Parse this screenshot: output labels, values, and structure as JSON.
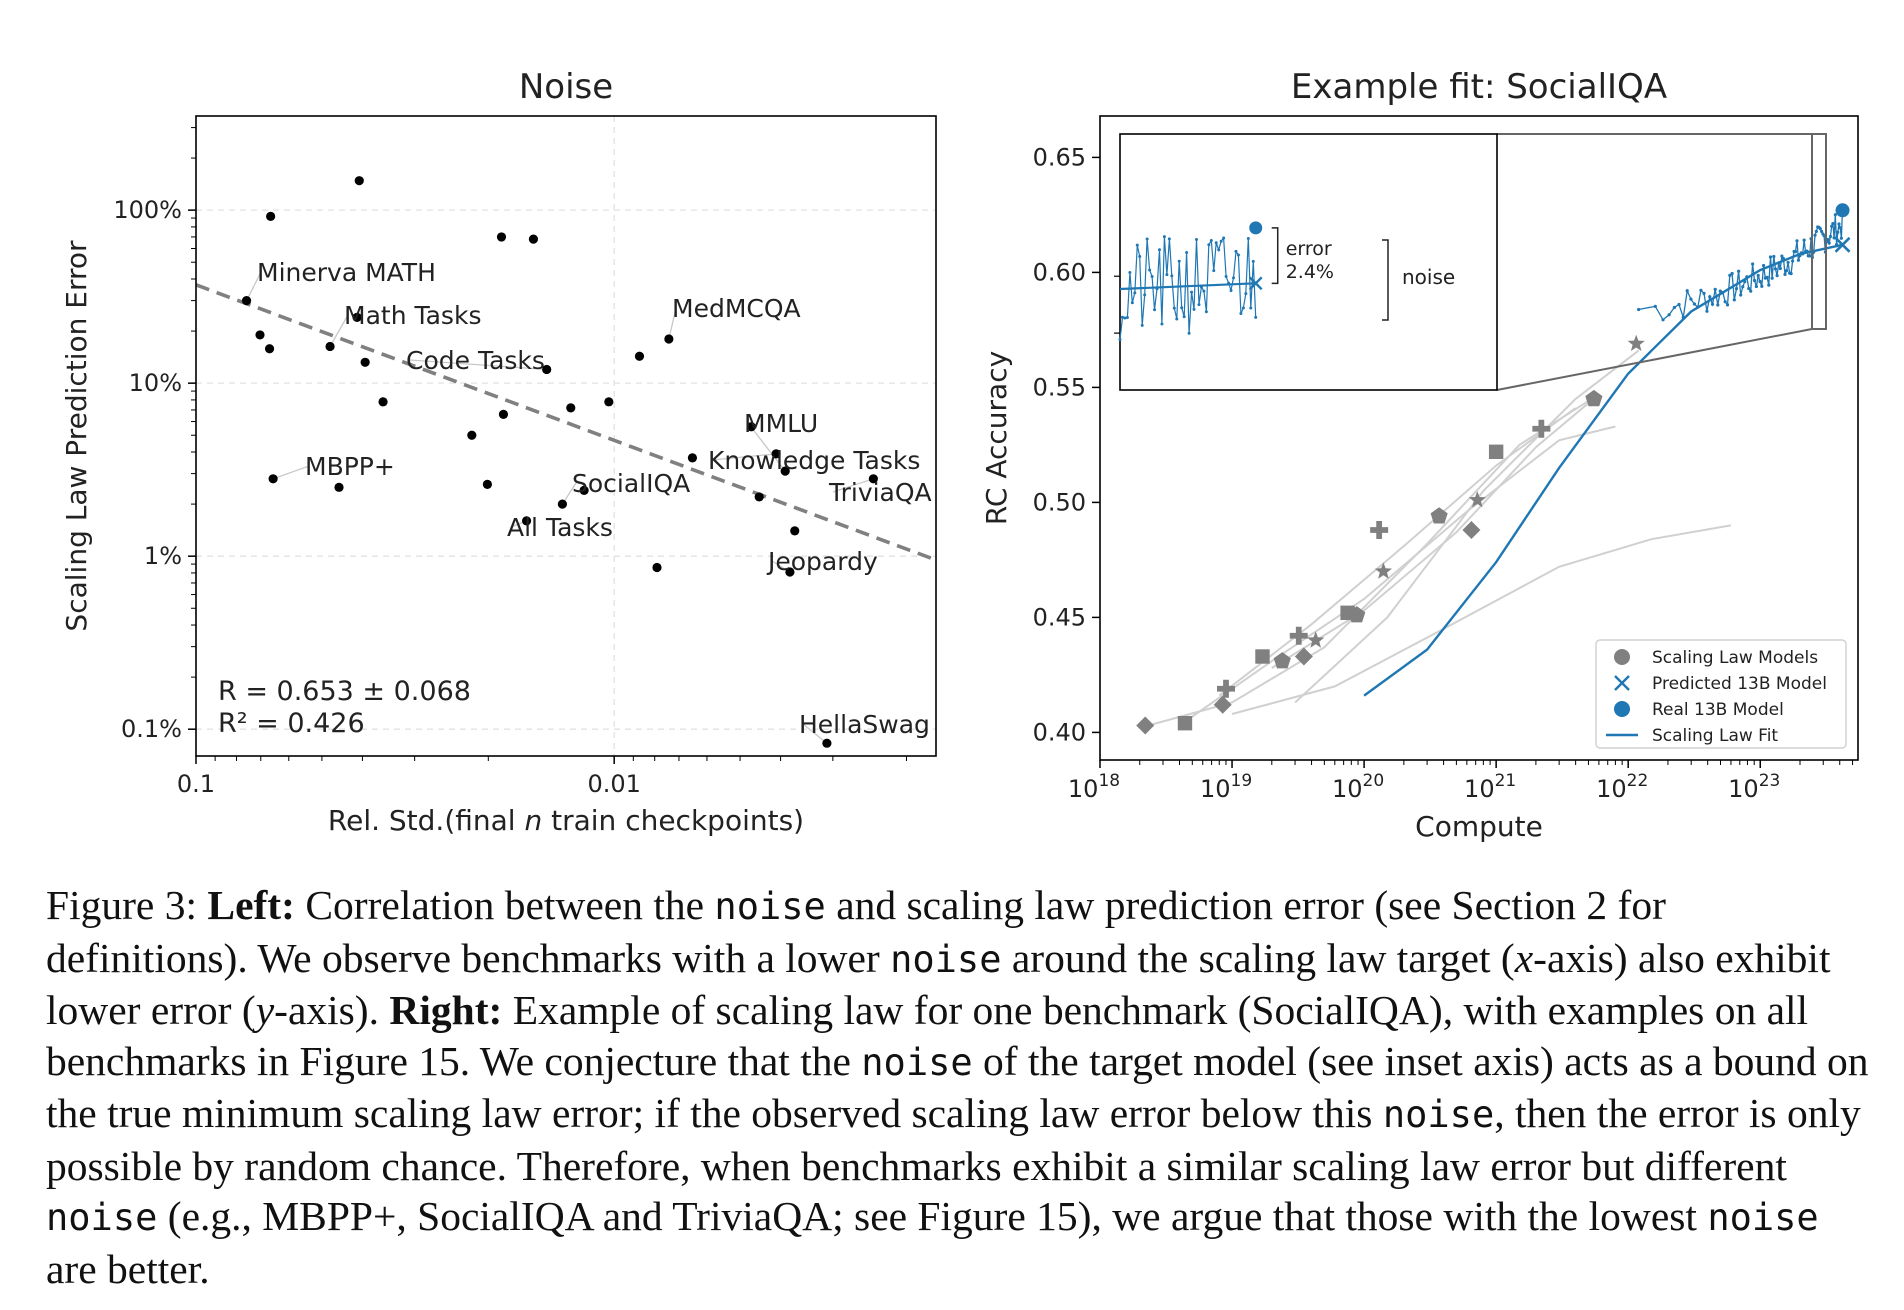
{
  "chart_data": [
    {
      "type": "scatter",
      "title": "Noise",
      "xlabel_prefix": "Rel. Std.(final ",
      "xlabel_var": "n",
      "xlabel_suffix": " train checkpoints)",
      "ylabel": "Scaling Law Prediction Error",
      "x_scale": "log",
      "x_reversed": true,
      "y_scale": "log",
      "xlim": [
        0.1,
        0.0017
      ],
      "ylim": [
        0.0007,
        3.5
      ],
      "x_ticks": [
        {
          "value": 0.1,
          "label": "0.1"
        },
        {
          "value": 0.01,
          "label": "0.01"
        }
      ],
      "y_ticks": [
        {
          "value": 1.0,
          "label": "100%"
        },
        {
          "value": 0.1,
          "label": "10%"
        },
        {
          "value": 0.01,
          "label": "1%"
        },
        {
          "value": 0.001,
          "label": "0.1%"
        }
      ],
      "grid": true,
      "points": [
        [
          0.0663,
          0.92
        ],
        [
          0.0407,
          1.48
        ],
        [
          0.0186,
          0.7
        ],
        [
          0.0156,
          0.68
        ],
        [
          0.0757,
          0.3
        ],
        [
          0.0412,
          0.24
        ],
        [
          0.0703,
          0.19
        ],
        [
          0.0667,
          0.158
        ],
        [
          0.0478,
          0.163
        ],
        [
          0.0394,
          0.132
        ],
        [
          0.0087,
          0.143
        ],
        [
          0.0074,
          0.18
        ],
        [
          0.0145,
          0.12
        ],
        [
          0.0127,
          0.072
        ],
        [
          0.0103,
          0.078
        ],
        [
          0.0357,
          0.078
        ],
        [
          0.0184,
          0.066
        ],
        [
          0.0219,
          0.05
        ],
        [
          0.0065,
          0.037
        ],
        [
          0.0047,
          0.056
        ],
        [
          0.0041,
          0.039
        ],
        [
          0.0039,
          0.031
        ],
        [
          0.0037,
          0.014
        ],
        [
          0.0024,
          0.028
        ],
        [
          0.0045,
          0.022
        ],
        [
          0.0201,
          0.026
        ],
        [
          0.0455,
          0.025
        ],
        [
          0.0654,
          0.028
        ],
        [
          0.0118,
          0.024
        ],
        [
          0.0133,
          0.02
        ],
        [
          0.0162,
          0.016
        ],
        [
          0.0038,
          0.0081
        ],
        [
          0.0079,
          0.0086
        ],
        [
          0.0031,
          0.00083
        ]
      ],
      "labeled_points": [
        {
          "label": "Minerva MATH",
          "x": 0.0757,
          "y": 0.3
        },
        {
          "label": "Math Tasks",
          "x": 0.0478,
          "y": 0.163
        },
        {
          "label": "Code Tasks",
          "x": 0.0145,
          "y": 0.12
        },
        {
          "label": "MedMCQA",
          "x": 0.0074,
          "y": 0.18
        },
        {
          "label": "MMLU",
          "x": 0.0039,
          "y": 0.031
        },
        {
          "label": "Knowledge Tasks",
          "x": 0.0041,
          "y": 0.039
        },
        {
          "label": "TriviaQA",
          "x": 0.0024,
          "y": 0.028
        },
        {
          "label": "MBPP+",
          "x": 0.0654,
          "y": 0.028
        },
        {
          "label": "SocialIQA",
          "x": 0.0133,
          "y": 0.02
        },
        {
          "label": "All Tasks",
          "x": 0.0162,
          "y": 0.016
        },
        {
          "label": "Jeopardy",
          "x": 0.0038,
          "y": 0.0081
        },
        {
          "label": "HellaSwag",
          "x": 0.0031,
          "y": 0.00083
        }
      ],
      "trendline": {
        "x": [
          0.1,
          0.0017
        ],
        "y": [
          0.37,
          0.0095
        ]
      },
      "annotations": [
        "R = 0.653 ± 0.068",
        "R² = 0.426"
      ]
    },
    {
      "type": "line",
      "title": "Example fit: SocialIQA",
      "xlabel": "Compute",
      "ylabel": "RC Accuracy",
      "x_scale": "log",
      "xlim": [
        1e+18,
        5.5e+23
      ],
      "ylim": [
        0.388,
        0.668
      ],
      "x_ticks": [
        {
          "value": 1e+18,
          "base": "10",
          "exp": "18"
        },
        {
          "value": 1e+19,
          "base": "10",
          "exp": "19"
        },
        {
          "value": 1e+20,
          "base": "10",
          "exp": "20"
        },
        {
          "value": 1e+21,
          "base": "10",
          "exp": "21"
        },
        {
          "value": 1e+22,
          "base": "10",
          "exp": "22"
        },
        {
          "value": 1e+23,
          "base": "10",
          "exp": "23"
        }
      ],
      "y_ticks": [
        {
          "value": 0.4,
          "label": "0.40"
        },
        {
          "value": 0.45,
          "label": "0.45"
        },
        {
          "value": 0.5,
          "label": "0.50"
        },
        {
          "value": 0.55,
          "label": "0.55"
        },
        {
          "value": 0.6,
          "label": "0.60"
        },
        {
          "value": 0.65,
          "label": "0.65"
        }
      ],
      "scaling_law_models": [
        {
          "marker": "diamond",
          "points": [
            [
              2.2e+18,
              0.403
            ],
            [
              8.5e+18,
              0.412
            ],
            [
              3.5e+19,
              0.433
            ],
            [
              6.5e+20,
              0.488
            ]
          ]
        },
        {
          "marker": "square",
          "points": [
            [
              4.4e+18,
              0.404
            ],
            [
              1.7e+19,
              0.433
            ],
            [
              7.5e+19,
              0.452
            ],
            [
              1e+21,
              0.522
            ]
          ]
        },
        {
          "marker": "plus",
          "points": [
            [
              9e+18,
              0.419
            ],
            [
              3.2e+19,
              0.442
            ],
            [
              1.3e+20,
              0.488
            ],
            [
              2.2e+21,
              0.532
            ]
          ]
        },
        {
          "marker": "hexagon",
          "points": [
            [
              2.4e+19,
              0.431
            ],
            [
              8.8e+19,
              0.451
            ],
            [
              3.7e+20,
              0.494
            ],
            [
              5.5e+21,
              0.545
            ]
          ]
        },
        {
          "marker": "star",
          "points": [
            [
              4.3e+19,
              0.44
            ],
            [
              1.4e+20,
              0.47
            ],
            [
              7.2e+20,
              0.501
            ],
            [
              1.15e+22,
              0.569
            ]
          ]
        }
      ],
      "scaling_law_model_fits": [
        [
          [
            2e+18,
            0.402
          ],
          [
            1e+19,
            0.413
          ],
          [
            5e+19,
            0.437
          ],
          [
            3e+20,
            0.482
          ],
          [
            1.5e+21,
            0.525
          ],
          [
            6e+21,
            0.547
          ]
        ],
        [
          [
            4e+18,
            0.403
          ],
          [
            2e+19,
            0.431
          ],
          [
            1e+20,
            0.458
          ],
          [
            6e+20,
            0.496
          ],
          [
            3e+21,
            0.527
          ],
          [
            8e+21,
            0.533
          ]
        ],
        [
          [
            8e+18,
            0.416
          ],
          [
            4e+19,
            0.447
          ],
          [
            2e+20,
            0.481
          ],
          [
            1e+21,
            0.516
          ],
          [
            4e+21,
            0.541
          ]
        ],
        [
          [
            2e+19,
            0.428
          ],
          [
            1e+20,
            0.453
          ],
          [
            5e+20,
            0.487
          ],
          [
            2e+21,
            0.524
          ],
          [
            6e+21,
            0.547
          ]
        ],
        [
          [
            3e+19,
            0.413
          ],
          [
            1.5e+20,
            0.45
          ],
          [
            8e+20,
            0.505
          ],
          [
            4e+21,
            0.545
          ],
          [
            1.2e+22,
            0.566
          ]
        ],
        [
          [
            1e+19,
            0.408
          ],
          [
            6e+19,
            0.42
          ],
          [
            4e+20,
            0.445
          ],
          [
            3e+21,
            0.472
          ],
          [
            1.5e+22,
            0.484
          ],
          [
            6e+22,
            0.49
          ]
        ]
      ],
      "scaling_law_fit": [
        [
          1e+20,
          0.416
        ],
        [
          3e+20,
          0.436
        ],
        [
          1e+21,
          0.474
        ],
        [
          3e+21,
          0.515
        ],
        [
          1e+22,
          0.556
        ],
        [
          3e+22,
          0.583
        ],
        [
          1e+23,
          0.601
        ],
        [
          2e+23,
          0.608
        ],
        [
          4.2e+23,
          0.612
        ]
      ],
      "target_checkpoints": {
        "x_start": 1.2e+22,
        "x_end": 4.2e+23,
        "y_start": 0.584,
        "y_end": 0.621
      },
      "predicted_13b": {
        "x": 4.2e+23,
        "y": 0.612
      },
      "real_13b": {
        "x": 4.2e+23,
        "y": 0.627
      },
      "inset": {
        "error_label": "error",
        "error_value": "2.4%",
        "noise_label": "noise"
      },
      "legend": {
        "placement": "lower-right",
        "entries": [
          "Scaling Law Models",
          "Predicted 13B Model",
          "Real 13B Model",
          "Scaling Law Fit"
        ]
      },
      "colors": {
        "models": "#808080",
        "fit": "#1f77b4",
        "error": "#d62728"
      }
    }
  ],
  "caption": {
    "label": "Figure 3:",
    "left_heading": "Left:",
    "t1": " Correlation between the ",
    "t2": " and scaling law prediction error (see Section 2 for definitions). We observe benchmarks with a lower ",
    "t3": " around the scaling law target (",
    "x_var": "x",
    "t4": "-axis) also exhibit lower error (",
    "y_var": "y",
    "t5": "-axis). ",
    "right_heading": "Right:",
    "t6": " Example of scaling law for one benchmark (SocialIQA), with examples on all benchmarks in Figure 15. We conjecture that the ",
    "t7": " of the target model (see inset axis) acts as a bound on the true minimum scaling law error; if the observed scaling law error below this ",
    "t8": ", then the error is only possible by random chance. Therefore, when benchmarks exhibit a similar scaling law error but different ",
    "t9": " (e.g., MBPP+, SocialIQA and TriviaQA; see Figure 15), we argue that those with the lowest ",
    "t10": " are better.",
    "code_term": "noise"
  }
}
